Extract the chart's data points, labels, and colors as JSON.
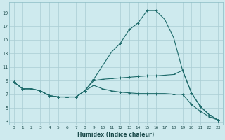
{
  "xlabel": "Humidex (Indice chaleur)",
  "bg_color": "#ceeaee",
  "grid_color": "#aacdd4",
  "line_color": "#1e6b6b",
  "xmin": -0.5,
  "xmax": 23.5,
  "ymin": 2.5,
  "ymax": 20.5,
  "yticks": [
    3,
    5,
    7,
    9,
    11,
    13,
    15,
    17,
    19
  ],
  "xticks": [
    0,
    1,
    2,
    3,
    4,
    5,
    6,
    7,
    8,
    9,
    10,
    11,
    12,
    13,
    14,
    15,
    16,
    17,
    18,
    19,
    20,
    21,
    22,
    23
  ],
  "line1_x": [
    0,
    1,
    2,
    3,
    4,
    5,
    6,
    7,
    8,
    9,
    10,
    11,
    12,
    13,
    14,
    15,
    16,
    17,
    18,
    19,
    20,
    21,
    22,
    23
  ],
  "line1_y": [
    8.8,
    7.8,
    7.8,
    7.5,
    6.8,
    6.6,
    6.6,
    6.6,
    7.5,
    9.2,
    11.2,
    13.2,
    14.5,
    16.5,
    17.5,
    19.3,
    19.3,
    18.0,
    15.3,
    10.5,
    7.2,
    5.2,
    4.0,
    3.2
  ],
  "line2_x": [
    0,
    1,
    2,
    3,
    4,
    5,
    6,
    7,
    8,
    9,
    10,
    11,
    12,
    13,
    14,
    15,
    16,
    17,
    18,
    19,
    20,
    21,
    22,
    23
  ],
  "line2_y": [
    8.8,
    7.8,
    7.8,
    7.5,
    6.8,
    6.6,
    6.6,
    6.6,
    7.5,
    9.0,
    9.2,
    9.3,
    9.4,
    9.5,
    9.6,
    9.7,
    9.7,
    9.8,
    9.9,
    10.5,
    7.2,
    5.2,
    4.0,
    3.2
  ],
  "line3_x": [
    0,
    1,
    2,
    3,
    4,
    5,
    6,
    7,
    8,
    9,
    10,
    11,
    12,
    13,
    14,
    15,
    16,
    17,
    18,
    19,
    20,
    21,
    22,
    23
  ],
  "line3_y": [
    8.8,
    7.8,
    7.8,
    7.5,
    6.8,
    6.6,
    6.6,
    6.6,
    7.5,
    8.3,
    7.8,
    7.5,
    7.3,
    7.2,
    7.1,
    7.1,
    7.1,
    7.1,
    7.0,
    7.0,
    5.5,
    4.5,
    3.7,
    3.2
  ]
}
